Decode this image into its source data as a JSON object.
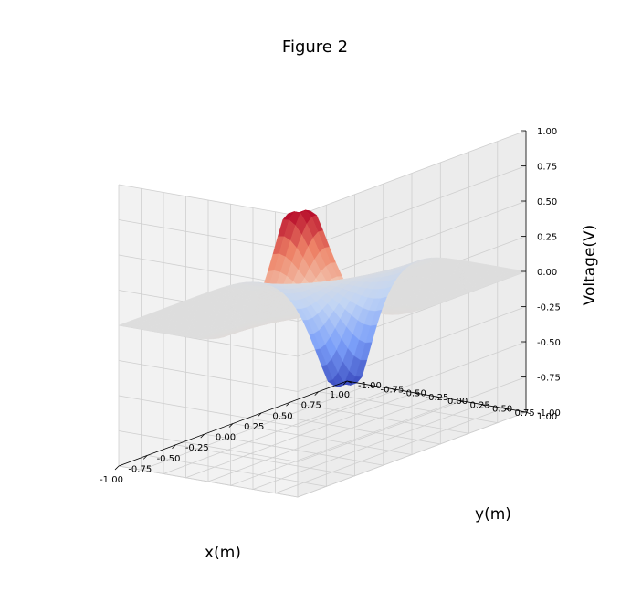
{
  "chart_data": {
    "type": "surface3d",
    "title": "Figure 2",
    "xlabel": "x(m)",
    "ylabel": "y(m)",
    "zlabel": "Voltage(V)",
    "xlim": [
      -1.0,
      1.0
    ],
    "ylim": [
      -1.0,
      1.0
    ],
    "zlim": [
      -1.0,
      1.0
    ],
    "x_ticks": [
      "-1.00",
      "-0.75",
      "-0.50",
      "-0.25",
      "0.00",
      "0.25",
      "0.50",
      "0.75",
      "1.00"
    ],
    "y_ticks": [
      "-1.00",
      "-0.75",
      "-0.50",
      "-0.25",
      "0.00",
      "0.25",
      "0.50",
      "0.75",
      "1.00"
    ],
    "z_ticks": [
      "-1.00",
      "-0.75",
      "-0.50",
      "-0.25",
      "0.00",
      "0.25",
      "0.50",
      "0.75",
      "1.00"
    ],
    "colormap": "coolwarm",
    "colormap_stops": [
      "#3b4cc0",
      "#7b9ff9",
      "#c0d4f5",
      "#dddddd",
      "#f2cbb7",
      "#ee8468",
      "#b40426"
    ],
    "grid": true,
    "surface_peaks": [
      {
        "x": -1.0,
        "y": 1.0,
        "z": 1.0
      },
      {
        "x": 1.0,
        "y": -1.0,
        "z": -1.0
      }
    ]
  }
}
